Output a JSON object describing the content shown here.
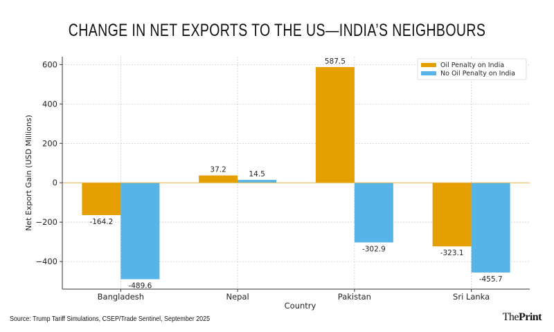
{
  "chart_data": {
    "type": "bar",
    "title": "CHANGE IN NET EXPORTS TO THE US—INDIA’S NEIGHBOURS",
    "xlabel": "Country",
    "ylabel": "Net Export Gain (USD Millions)",
    "categories": [
      "Bangladesh",
      "Nepal",
      "Pakistan",
      "Sri Lanka"
    ],
    "series": [
      {
        "name": "Oil Penalty on India",
        "color": "#E69F00",
        "values": [
          -164.2,
          37.2,
          587.5,
          -323.1
        ],
        "labels": [
          "-164.2",
          "37.2",
          "587.5",
          "-323.1"
        ]
      },
      {
        "name": "No Oil Penalty on India",
        "color": "#56B4E9",
        "values": [
          -489.6,
          14.5,
          -302.9,
          -455.7
        ],
        "labels": [
          "-489.6",
          "14.5",
          "-302.9",
          "-455.7"
        ]
      }
    ],
    "yticks": [
      -400,
      -200,
      0,
      200,
      400,
      600
    ],
    "ytick_labels": [
      "−400",
      "−200",
      "0",
      "200",
      "400",
      "600"
    ],
    "ylim": [
      -540,
      640
    ],
    "grid": true,
    "legend_position": "top-right"
  },
  "source": "Source: Trump Tariff Simulations, CSEP/Trade Sentinel, September 2025",
  "logo": {
    "the": "The",
    "print": "Print"
  }
}
